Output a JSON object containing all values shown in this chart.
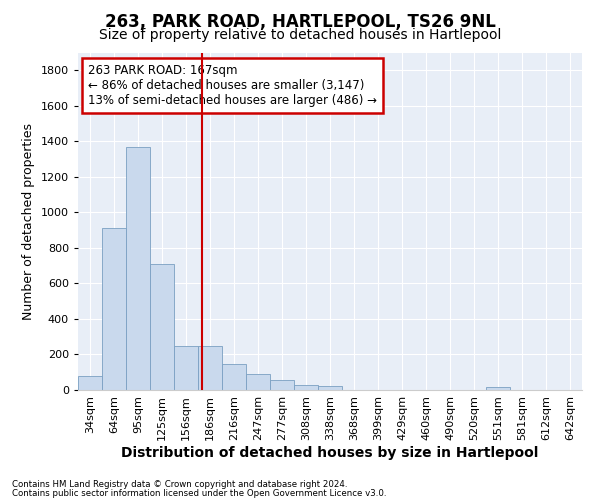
{
  "title": "263, PARK ROAD, HARTLEPOOL, TS26 9NL",
  "subtitle": "Size of property relative to detached houses in Hartlepool",
  "xlabel": "Distribution of detached houses by size in Hartlepool",
  "ylabel": "Number of detached properties",
  "footnote1": "Contains HM Land Registry data © Crown copyright and database right 2024.",
  "footnote2": "Contains public sector information licensed under the Open Government Licence v3.0.",
  "bin_labels": [
    "34sqm",
    "64sqm",
    "95sqm",
    "125sqm",
    "156sqm",
    "186sqm",
    "216sqm",
    "247sqm",
    "277sqm",
    "308sqm",
    "338sqm",
    "368sqm",
    "399sqm",
    "429sqm",
    "460sqm",
    "490sqm",
    "520sqm",
    "551sqm",
    "581sqm",
    "612sqm",
    "642sqm"
  ],
  "bar_values": [
    80,
    910,
    1370,
    710,
    250,
    245,
    145,
    90,
    55,
    30,
    20,
    0,
    0,
    0,
    0,
    0,
    0,
    18,
    0,
    0,
    0
  ],
  "bar_color": "#c9d9ed",
  "bar_edge_color": "#7a9fc2",
  "vline_x": 4.67,
  "vline_color": "#cc0000",
  "annotation_line1": "263 PARK ROAD: 167sqm",
  "annotation_line2": "← 86% of detached houses are smaller (3,147)",
  "annotation_line3": "13% of semi-detached houses are larger (486) →",
  "annotation_box_color": "#ffffff",
  "annotation_box_edge": "#cc0000",
  "ylim": [
    0,
    1900
  ],
  "yticks": [
    0,
    200,
    400,
    600,
    800,
    1000,
    1200,
    1400,
    1600,
    1800
  ],
  "bg_color": "#e8eef7",
  "fig_bg": "#ffffff",
  "title_fontsize": 12,
  "subtitle_fontsize": 10,
  "tick_fontsize": 8,
  "ylabel_fontsize": 9,
  "xlabel_fontsize": 10
}
